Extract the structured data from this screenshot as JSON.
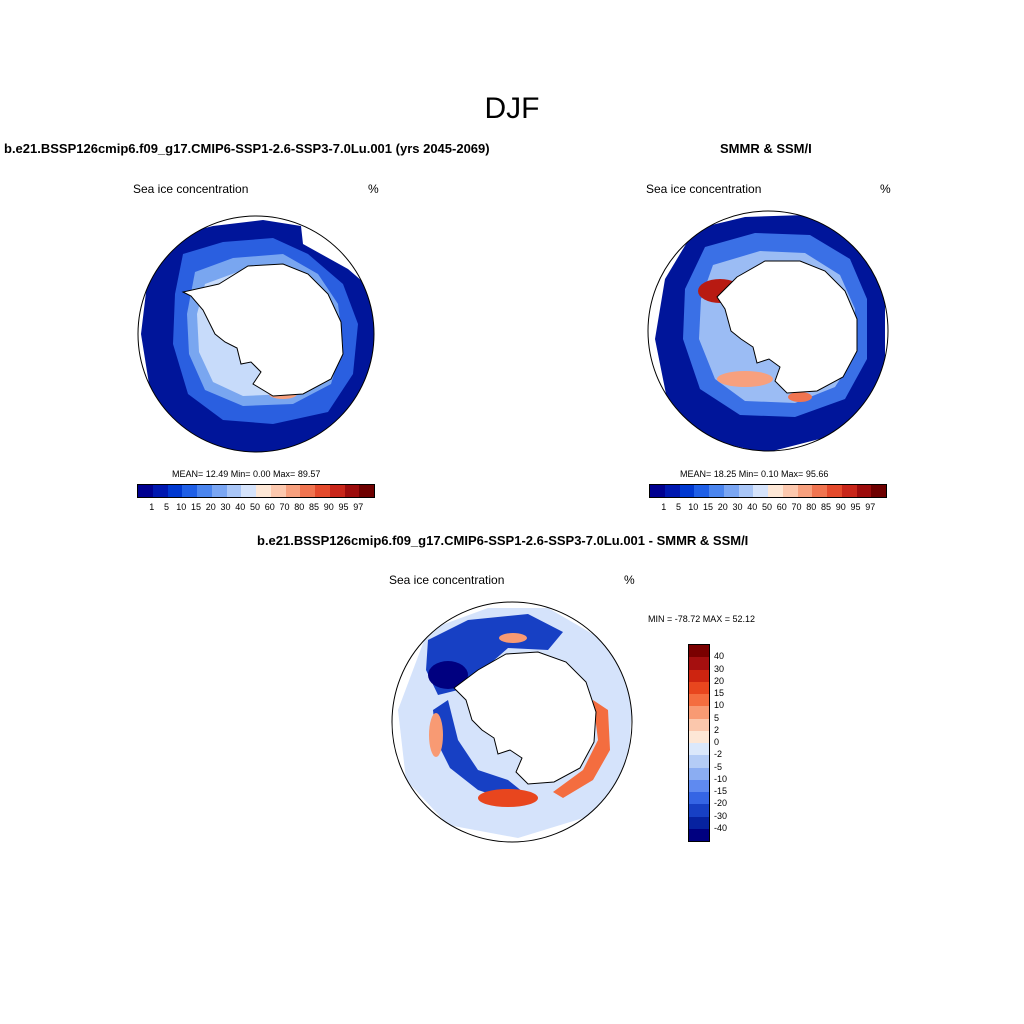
{
  "figure": {
    "season": "DJF"
  },
  "panels": [
    {
      "title": "b.e21.BSSP126cmip6.f09_g17.CMIP6-SSP1-2.6-SSP3-7.0Lu.001 (yrs 2045-2069)",
      "variable": "Sea ice concentration",
      "units": "%",
      "stats": "MEAN=  12.49  Min=   0.00  Max=  89.57",
      "mean": 12.49,
      "min": 0.0,
      "max": 89.57
    },
    {
      "title": "SMMR & SSM/I",
      "variable": "Sea ice concentration",
      "units": "%",
      "stats": "MEAN=  18.25  Min=   0.10  Max=  95.66",
      "mean": 18.25,
      "min": 0.1,
      "max": 95.66
    },
    {
      "title": "b.e21.BSSP126cmip6.f09_g17.CMIP6-SSP1-2.6-SSP3-7.0Lu.001 - SMMR & SSM/I",
      "variable": "Sea ice concentration",
      "units": "%",
      "stats": "MIN = -78.72 MAX =  52.12",
      "min": -78.72,
      "max": 52.12
    }
  ],
  "colorbar_main": {
    "labels": [
      "1",
      "5",
      "10",
      "15",
      "20",
      "30",
      "40",
      "50",
      "60",
      "70",
      "80",
      "85",
      "90",
      "95",
      "97"
    ],
    "colors": [
      "#000090",
      "#0018b0",
      "#0038d0",
      "#1f5fe6",
      "#4b85ee",
      "#7aa6f3",
      "#a9c6f7",
      "#d5e3fb",
      "#fde7d6",
      "#fcc8ae",
      "#f7a07e",
      "#f07450",
      "#e44a2c",
      "#c8261a",
      "#9c0c0c",
      "#6e0000"
    ]
  },
  "colorbar_diff": {
    "labels": [
      "40",
      "30",
      "20",
      "15",
      "10",
      "5",
      "2",
      "0",
      "-2",
      "-5",
      "-10",
      "-15",
      "-20",
      "-30",
      "-40"
    ],
    "colors": [
      "#7a0000",
      "#a50f0f",
      "#cd2410",
      "#e8461e",
      "#f46d3f",
      "#f89a73",
      "#fbc7ac",
      "#fde7d6",
      "#dbe8fb",
      "#b4ccf6",
      "#8badf2",
      "#5f8af0",
      "#3565e4",
      "#1740c4",
      "#0622a0",
      "#000080"
    ]
  }
}
